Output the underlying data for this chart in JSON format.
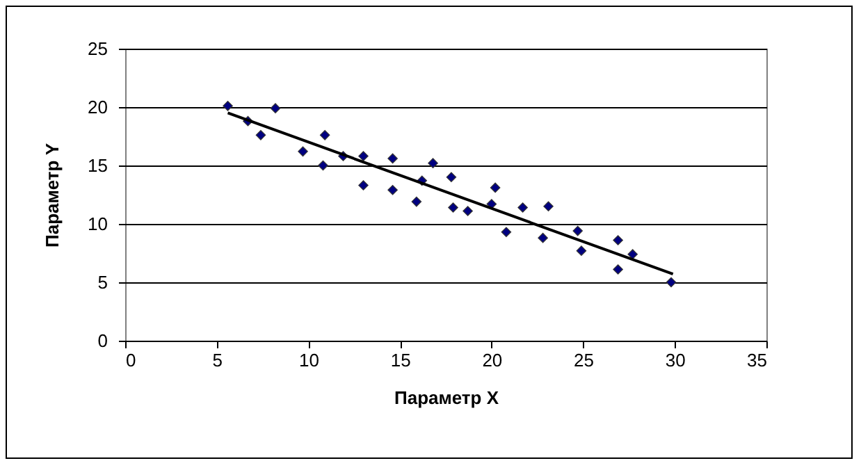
{
  "chart_data": {
    "type": "scatter",
    "xlabel": "Параметр X",
    "ylabel": "Параметр Y",
    "xlim": [
      0,
      35
    ],
    "xticks": [
      0,
      5,
      10,
      15,
      20,
      25,
      30,
      35
    ],
    "ylim": [
      0,
      25
    ],
    "yticks": [
      0,
      5,
      10,
      15,
      20,
      25
    ],
    "grid": "y",
    "marker": "diamond",
    "series": [
      {
        "color": "#000080",
        "x": [
          5.6,
          6.7,
          7.4,
          8.2,
          9.7,
          10.8,
          10.9,
          11.9,
          13.0,
          13.0,
          14.6,
          14.6,
          15.9,
          16.2,
          16.8,
          17.8,
          17.9,
          18.7,
          20.0,
          20.2,
          20.8,
          21.7,
          22.8,
          23.1,
          24.7,
          24.9,
          26.9,
          26.9,
          27.7,
          29.8
        ],
        "values": [
          20.1,
          18.8,
          17.6,
          19.9,
          16.2,
          15.0,
          17.6,
          15.8,
          15.8,
          13.3,
          15.6,
          12.9,
          11.9,
          13.7,
          15.2,
          14.0,
          11.4,
          11.1,
          11.7,
          13.1,
          9.3,
          11.4,
          8.8,
          11.5,
          9.4,
          7.7,
          8.6,
          6.1,
          7.4,
          5.0
        ]
      },
      {
        "type": "line",
        "color": "#000000",
        "marker": "none",
        "x": [
          5.6,
          29.9
        ],
        "values": [
          19.5,
          5.7
        ]
      }
    ]
  }
}
